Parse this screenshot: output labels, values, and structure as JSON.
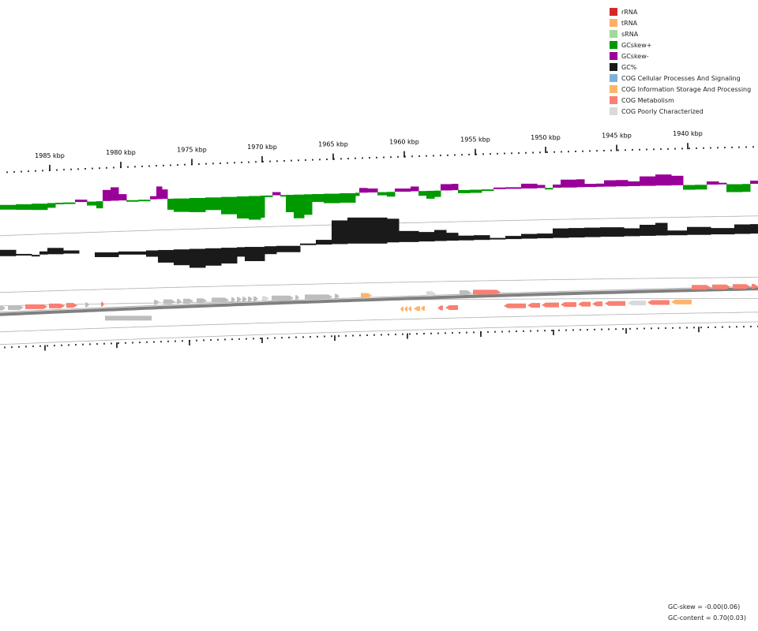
{
  "legend": [
    {
      "label": "rRNA",
      "color": "#d62728"
    },
    {
      "label": "tRNA",
      "color": "#fdae6b"
    },
    {
      "label": "sRNA",
      "color": "#a1d99b"
    },
    {
      "label": "GCskew+",
      "color": "#009a00"
    },
    {
      "label": "GCskew-",
      "color": "#990099"
    },
    {
      "label": "GC%",
      "color": "#1a1a1a"
    },
    {
      "label": "COG Cellular Processes And Signaling",
      "color": "#7fb1d8"
    },
    {
      "label": "COG Information Storage And Processing",
      "color": "#fdb56b"
    },
    {
      "label": "COG Metabolism",
      "color": "#fa8072"
    },
    {
      "label": "COG Poorly Characterized",
      "color": "#d9d9d9"
    }
  ],
  "ruler": {
    "unit": "kbp",
    "ticks": [
      {
        "label": "1985 kbp"
      },
      {
        "label": "1980 kbp"
      },
      {
        "label": "1975 kbp"
      },
      {
        "label": "1970 kbp"
      },
      {
        "label": "1965 kbp"
      },
      {
        "label": "1960 kbp"
      },
      {
        "label": "1955 kbp"
      },
      {
        "label": "1950 kbp"
      },
      {
        "label": "1945 kbp"
      },
      {
        "label": "1940 kbp"
      }
    ]
  },
  "stats": {
    "gc_skew": "GC-skew = -0.00(0.06)",
    "gc_content": "GC-content = 0.70(0.03)"
  },
  "colors": {
    "skew_pos": "#009a00",
    "skew_neg": "#990099",
    "gc": "#1a1a1a",
    "gene_grey": "#bdbdbd",
    "gene_metabolism": "#fa8072",
    "gene_info": "#fdb56b",
    "gene_poorly": "#d9d9d9",
    "backbone": "#808080",
    "guide": "#b0b0b0"
  }
}
